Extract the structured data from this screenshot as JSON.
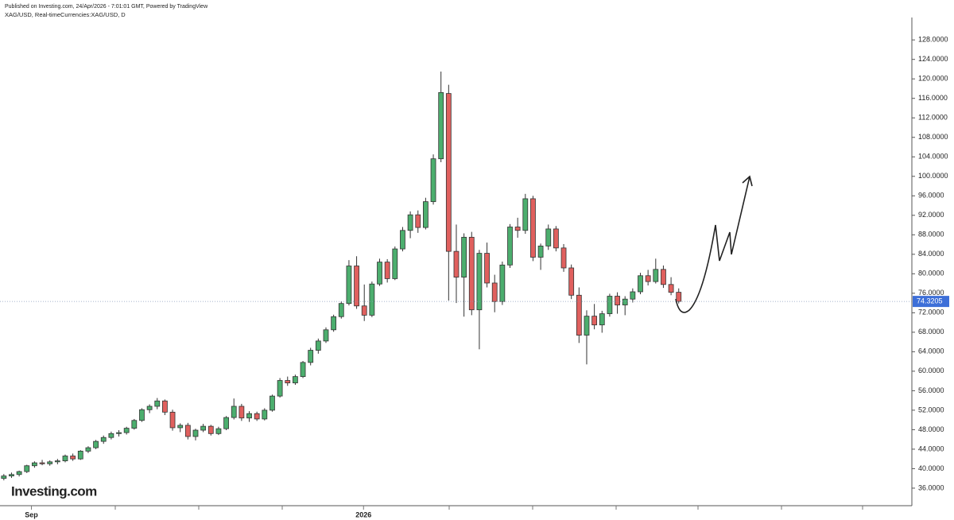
{
  "chart_data": {
    "type": "candlestick",
    "subtitle": "Published on Investing.com, 24/Apr/2026 - 7:01:01 GMT, Powered by TradingView",
    "title": "XAG/USD, Real-timeCurrencies:XAG/USD, D",
    "logo": "Investing.com",
    "up_color": "#4cae6e",
    "down_color": "#e0605e",
    "open": [
      38.0,
      38.5,
      38.8,
      39.4,
      40.6,
      41.2,
      41.0,
      41.4,
      41.6,
      42.6,
      42.0,
      43.6,
      44.3,
      45.6,
      46.4,
      47.2,
      47.4,
      48.3,
      49.9,
      52.1,
      52.8,
      53.9,
      51.6,
      48.4,
      48.9,
      46.6,
      47.9,
      48.7,
      47.2,
      48.2,
      50.5,
      52.8,
      50.4,
      51.3,
      50.2,
      52.0,
      54.9,
      58.1,
      57.6,
      58.9,
      61.8,
      64.3,
      66.2,
      68.5,
      71.2,
      73.9,
      81.6,
      73.4,
      71.5,
      77.9,
      82.4,
      79.0,
      85.1,
      88.9,
      92.1,
      89.5,
      94.8,
      103.6,
      117.0,
      84.6,
      79.3,
      87.5,
      72.6,
      84.2,
      78.1,
      74.3,
      81.8,
      89.6,
      88.9,
      95.4,
      83.4,
      85.7,
      89.2,
      85.3,
      81.2,
      75.6,
      67.4,
      71.3,
      69.5,
      71.8,
      75.4,
      73.6,
      74.8,
      76.3,
      79.6,
      78.4,
      80.9,
      77.8,
      76.2
    ],
    "high": [
      38.9,
      39.2,
      39.6,
      40.8,
      41.5,
      41.8,
      41.7,
      42.0,
      42.9,
      43.1,
      43.8,
      44.6,
      45.9,
      46.8,
      47.6,
      47.9,
      48.6,
      50.2,
      52.4,
      53.2,
      54.5,
      54.2,
      52.1,
      49.3,
      49.4,
      48.2,
      49.2,
      49.0,
      48.6,
      50.8,
      54.4,
      53.3,
      51.8,
      51.7,
      52.4,
      55.2,
      58.6,
      58.9,
      59.3,
      62.1,
      64.8,
      66.7,
      69.0,
      71.6,
      74.3,
      82.8,
      83.6,
      77.8,
      78.4,
      83.1,
      83.0,
      85.6,
      89.6,
      92.8,
      93.0,
      95.6,
      104.5,
      121.5,
      118.8,
      90.1,
      88.3,
      88.6,
      84.9,
      86.4,
      79.8,
      82.5,
      90.2,
      91.5,
      96.4,
      96.0,
      86.2,
      90.1,
      89.8,
      86.1,
      81.9,
      77.2,
      72.5,
      73.8,
      72.4,
      75.9,
      76.2,
      75.4,
      77.0,
      80.2,
      80.8,
      83.1,
      81.7,
      79.3,
      77.0
    ],
    "low": [
      37.6,
      38.1,
      38.4,
      39.1,
      40.2,
      40.7,
      40.6,
      40.9,
      41.3,
      41.6,
      41.8,
      43.2,
      44.0,
      45.1,
      46.0,
      46.6,
      47.0,
      48.0,
      49.6,
      51.4,
      52.2,
      51.0,
      47.8,
      47.5,
      46.0,
      45.8,
      47.5,
      46.8,
      46.9,
      47.9,
      50.1,
      49.8,
      49.6,
      49.8,
      49.9,
      51.7,
      54.6,
      57.0,
      57.2,
      58.6,
      61.2,
      63.6,
      65.8,
      68.1,
      70.8,
      73.5,
      72.8,
      70.3,
      71.1,
      77.5,
      78.2,
      78.7,
      84.6,
      87.3,
      88.4,
      89.1,
      94.2,
      102.9,
      74.5,
      74.0,
      71.2,
      71.5,
      64.5,
      77.2,
      72.1,
      73.6,
      81.2,
      87.4,
      88.2,
      82.6,
      80.8,
      84.9,
      84.6,
      80.4,
      74.8,
      65.8,
      61.4,
      68.6,
      67.9,
      71.2,
      71.8,
      71.5,
      74.1,
      75.8,
      77.6,
      78.0,
      77.1,
      75.6,
      73.9
    ],
    "close": [
      38.5,
      38.8,
      39.4,
      40.6,
      41.2,
      41.0,
      41.4,
      41.6,
      42.6,
      42.0,
      43.6,
      44.3,
      45.6,
      46.4,
      47.2,
      47.4,
      48.3,
      49.9,
      52.1,
      52.8,
      53.9,
      51.6,
      48.4,
      48.9,
      46.6,
      47.9,
      48.7,
      47.2,
      48.2,
      50.5,
      52.8,
      50.4,
      51.3,
      50.2,
      52.0,
      54.9,
      58.1,
      57.6,
      58.9,
      61.8,
      64.3,
      66.2,
      68.5,
      71.2,
      73.9,
      81.6,
      73.4,
      71.5,
      77.9,
      82.4,
      79.0,
      85.1,
      88.9,
      92.1,
      89.5,
      94.8,
      103.6,
      117.2,
      84.6,
      79.3,
      87.5,
      72.6,
      84.2,
      78.1,
      74.3,
      81.8,
      89.6,
      88.9,
      95.4,
      83.4,
      85.7,
      89.2,
      85.3,
      81.2,
      75.6,
      67.4,
      71.3,
      69.5,
      71.8,
      75.4,
      73.6,
      74.8,
      76.3,
      79.6,
      78.4,
      80.9,
      77.8,
      76.2,
      74.3205
    ],
    "last_price": 74.3205,
    "xlim": [
      -0.5,
      118.4
    ],
    "xticks": [
      {
        "value": 3.6,
        "label": "Sep"
      },
      {
        "value": 46.9,
        "label": "2026"
      }
    ],
    "ylim": [
      32.4,
      132.6
    ],
    "yticks": [
      {
        "value": 36,
        "label": "36.0000"
      },
      {
        "value": 40,
        "label": "40.0000"
      },
      {
        "value": 44,
        "label": "44.0000"
      },
      {
        "value": 48,
        "label": "48.0000"
      },
      {
        "value": 52,
        "label": "52.0000"
      },
      {
        "value": 56,
        "label": "56.0000"
      },
      {
        "value": 60,
        "label": "60.0000"
      },
      {
        "value": 64,
        "label": "64.0000"
      },
      {
        "value": 68,
        "label": "68.0000"
      },
      {
        "value": 72,
        "label": "72.0000"
      },
      {
        "value": 76,
        "label": "76.0000"
      },
      {
        "value": 80,
        "label": "80.0000"
      },
      {
        "value": 84,
        "label": "84.0000"
      },
      {
        "value": 88,
        "label": "88.0000"
      },
      {
        "value": 92,
        "label": "92.0000"
      },
      {
        "value": 96,
        "label": "96.0000"
      },
      {
        "value": 100,
        "label": "100.0000"
      },
      {
        "value": 104,
        "label": "104.0000"
      },
      {
        "value": 108,
        "label": "108.0000"
      },
      {
        "value": 112,
        "label": "112.0000"
      },
      {
        "value": 116,
        "label": "116.0000"
      },
      {
        "value": 120,
        "label": "120.0000"
      },
      {
        "value": 124,
        "label": "124.0000"
      },
      {
        "value": 128,
        "label": "128.0000"
      }
    ]
  }
}
